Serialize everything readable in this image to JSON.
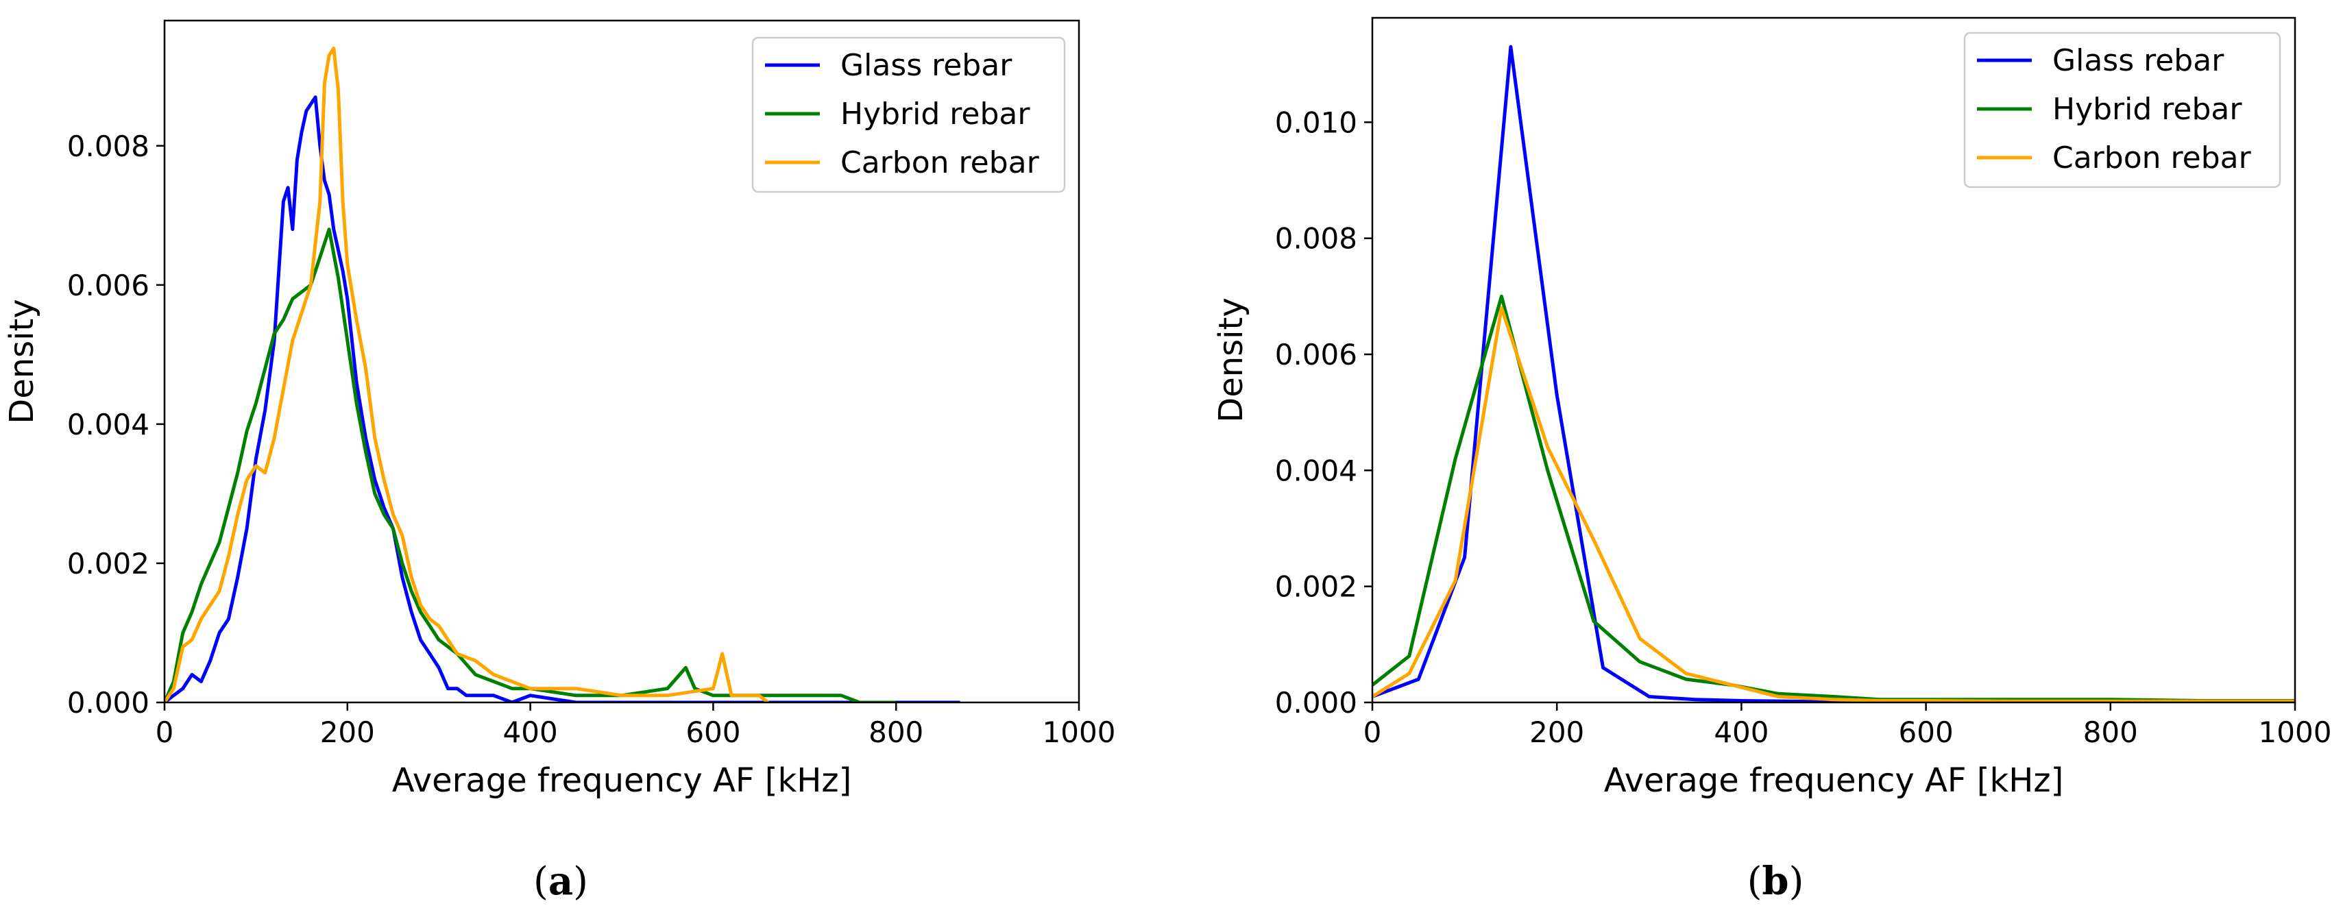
{
  "chart_data": [
    {
      "type": "line",
      "panel": "(a)",
      "panel_letter": "a",
      "xlabel": "Average frequency AF [kHz]",
      "ylabel": "Density",
      "xlim": [
        0,
        1000
      ],
      "ylim": [
        0,
        0.0098
      ],
      "xticks": [
        0,
        200,
        400,
        600,
        800,
        1000
      ],
      "xtick_labels": [
        "0",
        "200",
        "400",
        "600",
        "800",
        "1000"
      ],
      "yticks": [
        0,
        0.002,
        0.004,
        0.006,
        0.008
      ],
      "ytick_labels": [
        "0.000",
        "0.002",
        "0.004",
        "0.006",
        "0.008"
      ],
      "legend_position": "top-right",
      "series": [
        {
          "name": "Glass rebar",
          "color": "#0000ff",
          "x": [
            0,
            10,
            20,
            30,
            40,
            50,
            60,
            70,
            80,
            90,
            100,
            110,
            120,
            130,
            135,
            140,
            145,
            150,
            155,
            160,
            165,
            170,
            175,
            180,
            185,
            190,
            195,
            200,
            210,
            220,
            230,
            240,
            250,
            260,
            270,
            280,
            290,
            300,
            310,
            320,
            330,
            340,
            360,
            380,
            400,
            450,
            500,
            550,
            600,
            650,
            700,
            750,
            800,
            870
          ],
          "y": [
            0.0,
            0.0001,
            0.0002,
            0.0004,
            0.0003,
            0.0006,
            0.001,
            0.0012,
            0.0018,
            0.0025,
            0.0035,
            0.0042,
            0.0052,
            0.0072,
            0.0074,
            0.0068,
            0.0078,
            0.0082,
            0.0085,
            0.0086,
            0.0087,
            0.008,
            0.0075,
            0.0073,
            0.0068,
            0.0065,
            0.0062,
            0.0058,
            0.0046,
            0.0038,
            0.0032,
            0.0028,
            0.0025,
            0.0018,
            0.0013,
            0.0009,
            0.0007,
            0.0005,
            0.0002,
            0.0002,
            0.0001,
            0.0001,
            0.0001,
            0.0,
            0.0001,
            0.0,
            0.0,
            0.0,
            0.0,
            0.0,
            0.0,
            0.0,
            0.0,
            0.0
          ]
        },
        {
          "name": "Hybrid rebar",
          "color": "#008000",
          "x": [
            0,
            10,
            20,
            30,
            40,
            50,
            60,
            70,
            80,
            90,
            100,
            110,
            120,
            130,
            140,
            150,
            160,
            170,
            180,
            190,
            200,
            210,
            220,
            230,
            240,
            250,
            260,
            270,
            280,
            290,
            300,
            320,
            340,
            360,
            380,
            400,
            450,
            500,
            550,
            570,
            580,
            600,
            620,
            650,
            700,
            740,
            760,
            800
          ],
          "y": [
            0.0,
            0.0003,
            0.001,
            0.0013,
            0.0017,
            0.002,
            0.0023,
            0.0028,
            0.0033,
            0.0039,
            0.0043,
            0.0048,
            0.0053,
            0.0055,
            0.0058,
            0.0059,
            0.006,
            0.0064,
            0.0068,
            0.0061,
            0.0052,
            0.0043,
            0.0036,
            0.003,
            0.0027,
            0.0025,
            0.002,
            0.0016,
            0.0013,
            0.0011,
            0.0009,
            0.0007,
            0.0004,
            0.0003,
            0.0002,
            0.0002,
            0.0001,
            0.0001,
            0.0002,
            0.0005,
            0.0002,
            0.0001,
            0.0001,
            0.0001,
            0.0001,
            0.0001,
            0.0,
            0.0
          ]
        },
        {
          "name": "Carbon rebar",
          "color": "#ffa500",
          "x": [
            0,
            10,
            20,
            30,
            40,
            50,
            60,
            70,
            80,
            90,
            100,
            110,
            120,
            130,
            140,
            150,
            160,
            170,
            175,
            180,
            185,
            190,
            195,
            200,
            210,
            220,
            230,
            240,
            250,
            260,
            270,
            280,
            290,
            300,
            310,
            320,
            340,
            360,
            380,
            400,
            450,
            500,
            550,
            600,
            610,
            620,
            630,
            650,
            660
          ],
          "y": [
            0.0,
            0.0002,
            0.0008,
            0.0009,
            0.0012,
            0.0014,
            0.0016,
            0.0021,
            0.0027,
            0.0032,
            0.0034,
            0.0033,
            0.0038,
            0.0045,
            0.0052,
            0.0056,
            0.006,
            0.0072,
            0.0089,
            0.0093,
            0.0094,
            0.0088,
            0.0072,
            0.0063,
            0.0055,
            0.0048,
            0.0038,
            0.0032,
            0.0027,
            0.0024,
            0.0018,
            0.0014,
            0.0012,
            0.0011,
            0.0009,
            0.0007,
            0.0006,
            0.0004,
            0.0003,
            0.0002,
            0.0002,
            0.0001,
            0.0001,
            0.0002,
            0.0007,
            0.0001,
            0.0001,
            0.0001,
            0.0
          ]
        }
      ]
    },
    {
      "type": "line",
      "panel": "(b)",
      "panel_letter": "b",
      "xlabel": "Average frequency AF [kHz]",
      "ylabel": "Density",
      "xlim": [
        0,
        1000
      ],
      "ylim": [
        0,
        0.0118
      ],
      "xticks": [
        0,
        200,
        400,
        600,
        800,
        1000
      ],
      "xtick_labels": [
        "0",
        "200",
        "400",
        "600",
        "800",
        "1000"
      ],
      "yticks": [
        0,
        0.002,
        0.004,
        0.006,
        0.008,
        0.01
      ],
      "ytick_labels": [
        "0.000",
        "0.002",
        "0.004",
        "0.006",
        "0.008",
        "0.010"
      ],
      "legend_position": "top-right",
      "series": [
        {
          "name": "Glass rebar",
          "color": "#0000ff",
          "x": [
            0,
            50,
            100,
            150,
            200,
            250,
            300,
            350,
            400,
            450,
            500,
            550,
            600,
            700,
            800,
            900,
            1000
          ],
          "y": [
            0.0001,
            0.0004,
            0.0025,
            0.0113,
            0.0053,
            0.0006,
            0.0001,
            5e-05,
            3e-05,
            2e-05,
            1e-05,
            0.0,
            0.0,
            0.0,
            0.0,
            0.0,
            0.0
          ]
        },
        {
          "name": "Hybrid rebar",
          "color": "#008000",
          "x": [
            0,
            40,
            90,
            140,
            190,
            240,
            290,
            340,
            390,
            440,
            500,
            550,
            600,
            700,
            800,
            900,
            1000
          ],
          "y": [
            0.0003,
            0.0008,
            0.0042,
            0.007,
            0.004,
            0.0014,
            0.0007,
            0.0004,
            0.0003,
            0.00015,
            0.0001,
            5e-05,
            5e-05,
            5e-05,
            5e-05,
            3e-05,
            3e-05
          ]
        },
        {
          "name": "Carbon rebar",
          "color": "#ffa500",
          "x": [
            0,
            40,
            90,
            140,
            190,
            240,
            290,
            340,
            390,
            440,
            500,
            550,
            600,
            700,
            800,
            900,
            1000
          ],
          "y": [
            0.0001,
            0.0005,
            0.0021,
            0.0068,
            0.0044,
            0.0028,
            0.0011,
            0.0005,
            0.0003,
            0.0001,
            5e-05,
            3e-05,
            3e-05,
            2e-05,
            2e-05,
            2e-05,
            2e-05
          ]
        }
      ]
    }
  ]
}
